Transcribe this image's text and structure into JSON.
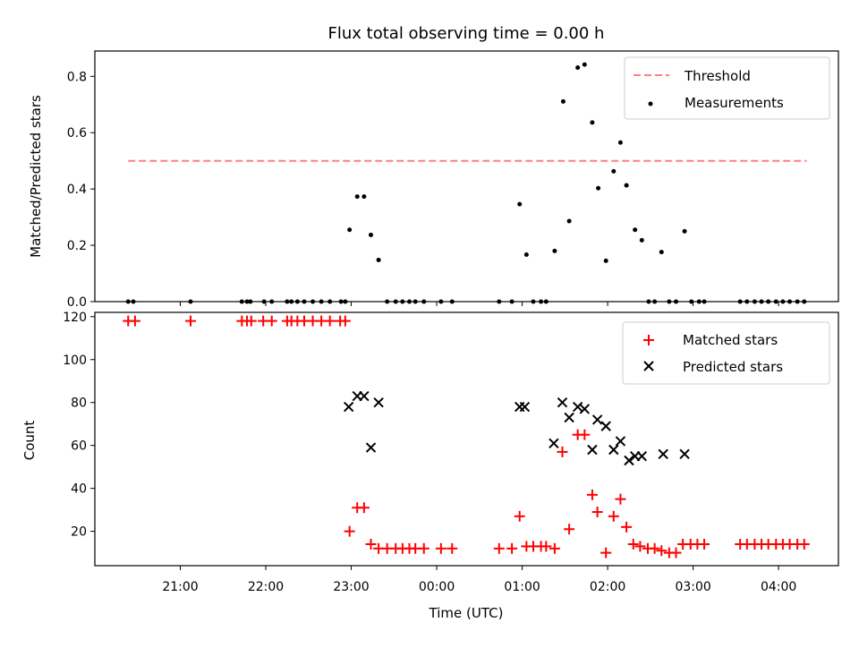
{
  "chart_data": {
    "title": "Flux total observing time = 0.00 h",
    "xlabel": "Time (UTC)",
    "x_unit": "hours since 20:00 UTC",
    "xlim": [
      20.0,
      28.7
    ],
    "xticks": [
      {
        "v": 21,
        "label": "21:00"
      },
      {
        "v": 22,
        "label": "22:00"
      },
      {
        "v": 23,
        "label": "23:00"
      },
      {
        "v": 24,
        "label": "00:00"
      },
      {
        "v": 25,
        "label": "01:00"
      },
      {
        "v": 26,
        "label": "02:00"
      },
      {
        "v": 27,
        "label": "03:00"
      },
      {
        "v": 28,
        "label": "04:00"
      }
    ],
    "top": {
      "type": "scatter",
      "ylabel": "Matched/Predicted stars",
      "ylim": [
        0,
        0.89
      ],
      "yticks": [
        {
          "v": 0.0,
          "label": "0.0"
        },
        {
          "v": 0.2,
          "label": "0.2"
        },
        {
          "v": 0.4,
          "label": "0.4"
        },
        {
          "v": 0.6,
          "label": "0.6"
        },
        {
          "v": 0.8,
          "label": "0.8"
        }
      ],
      "threshold": {
        "name": "Threshold",
        "value": 0.5,
        "x_start": 20.39,
        "x_end": 28.33,
        "color": "#ff7f7f"
      },
      "measurements": {
        "name": "Measurements",
        "color": "#000000",
        "points": [
          [
            20.39,
            0.0
          ],
          [
            20.45,
            0.0
          ],
          [
            21.12,
            0.0
          ],
          [
            21.72,
            0.0
          ],
          [
            21.78,
            0.0
          ],
          [
            21.82,
            0.0
          ],
          [
            21.98,
            0.0
          ],
          [
            22.07,
            0.0
          ],
          [
            22.25,
            0.0
          ],
          [
            22.3,
            0.0
          ],
          [
            22.37,
            0.0
          ],
          [
            22.45,
            0.0
          ],
          [
            22.55,
            0.0
          ],
          [
            22.65,
            0.0
          ],
          [
            22.75,
            0.0
          ],
          [
            22.88,
            0.0
          ],
          [
            22.93,
            0.0
          ],
          [
            22.98,
            0.255
          ],
          [
            23.07,
            0.373
          ],
          [
            23.15,
            0.373
          ],
          [
            23.23,
            0.237
          ],
          [
            23.32,
            0.148
          ],
          [
            23.42,
            0.0
          ],
          [
            23.52,
            0.0
          ],
          [
            23.6,
            0.0
          ],
          [
            23.68,
            0.0
          ],
          [
            23.75,
            0.0
          ],
          [
            23.85,
            0.0
          ],
          [
            24.05,
            0.0
          ],
          [
            24.18,
            0.0
          ],
          [
            24.73,
            0.0
          ],
          [
            24.88,
            0.0
          ],
          [
            24.97,
            0.346
          ],
          [
            25.05,
            0.167
          ],
          [
            25.13,
            0.0
          ],
          [
            25.22,
            0.0
          ],
          [
            25.28,
            0.0
          ],
          [
            25.38,
            0.18
          ],
          [
            25.48,
            0.711
          ],
          [
            25.55,
            0.286
          ],
          [
            25.65,
            0.831
          ],
          [
            25.73,
            0.842
          ],
          [
            25.82,
            0.636
          ],
          [
            25.89,
            0.403
          ],
          [
            25.98,
            0.145
          ],
          [
            26.07,
            0.463
          ],
          [
            26.15,
            0.565
          ],
          [
            26.22,
            0.413
          ],
          [
            26.32,
            0.255
          ],
          [
            26.4,
            0.218
          ],
          [
            26.48,
            0.0
          ],
          [
            26.55,
            0.0
          ],
          [
            26.63,
            0.176
          ],
          [
            26.72,
            0.0
          ],
          [
            26.8,
            0.0
          ],
          [
            26.9,
            0.25
          ],
          [
            26.98,
            0.0
          ],
          [
            27.07,
            0.0
          ],
          [
            27.13,
            0.0
          ],
          [
            27.55,
            0.0
          ],
          [
            27.63,
            0.0
          ],
          [
            27.72,
            0.0
          ],
          [
            27.8,
            0.0
          ],
          [
            27.88,
            0.0
          ],
          [
            27.97,
            0.0
          ],
          [
            28.05,
            0.0
          ],
          [
            28.13,
            0.0
          ],
          [
            28.22,
            0.0
          ],
          [
            28.3,
            0.0
          ]
        ]
      },
      "legend": {
        "position": "top-right",
        "entries": [
          "Threshold",
          "Measurements"
        ]
      }
    },
    "bottom": {
      "type": "scatter",
      "ylabel": "Count",
      "ylim": [
        4,
        122
      ],
      "yticks": [
        {
          "v": 20,
          "label": "20"
        },
        {
          "v": 40,
          "label": "40"
        },
        {
          "v": 60,
          "label": "60"
        },
        {
          "v": 80,
          "label": "80"
        },
        {
          "v": 100,
          "label": "100"
        },
        {
          "v": 120,
          "label": "120"
        }
      ],
      "series": [
        {
          "name": "Matched stars",
          "marker": "+",
          "color": "#ff0000",
          "points": [
            [
              20.39,
              118
            ],
            [
              20.47,
              118
            ],
            [
              21.12,
              118
            ],
            [
              21.72,
              118
            ],
            [
              21.78,
              118
            ],
            [
              21.83,
              118
            ],
            [
              21.97,
              118
            ],
            [
              22.07,
              118
            ],
            [
              22.25,
              118
            ],
            [
              22.3,
              118
            ],
            [
              22.37,
              118
            ],
            [
              22.45,
              118
            ],
            [
              22.55,
              118
            ],
            [
              22.65,
              118
            ],
            [
              22.75,
              118
            ],
            [
              22.87,
              118
            ],
            [
              22.93,
              118
            ],
            [
              22.98,
              20
            ],
            [
              23.07,
              31
            ],
            [
              23.15,
              31
            ],
            [
              23.23,
              14
            ],
            [
              23.32,
              12
            ],
            [
              23.42,
              12
            ],
            [
              23.52,
              12
            ],
            [
              23.6,
              12
            ],
            [
              23.68,
              12
            ],
            [
              23.75,
              12
            ],
            [
              23.85,
              12
            ],
            [
              24.05,
              12
            ],
            [
              24.18,
              12
            ],
            [
              24.73,
              12
            ],
            [
              24.88,
              12
            ],
            [
              24.97,
              27
            ],
            [
              25.05,
              13
            ],
            [
              25.13,
              13
            ],
            [
              25.22,
              13
            ],
            [
              25.28,
              13
            ],
            [
              25.38,
              12
            ],
            [
              25.47,
              57
            ],
            [
              25.55,
              21
            ],
            [
              25.65,
              65
            ],
            [
              25.73,
              65
            ],
            [
              25.82,
              37
            ],
            [
              25.88,
              29
            ],
            [
              25.98,
              10
            ],
            [
              26.07,
              27
            ],
            [
              26.15,
              35
            ],
            [
              26.22,
              22
            ],
            [
              26.3,
              14
            ],
            [
              26.38,
              13
            ],
            [
              26.47,
              12
            ],
            [
              26.55,
              12
            ],
            [
              26.63,
              11
            ],
            [
              26.72,
              10
            ],
            [
              26.8,
              10
            ],
            [
              26.88,
              14
            ],
            [
              26.97,
              14
            ],
            [
              27.05,
              14
            ],
            [
              27.13,
              14
            ],
            [
              27.55,
              14
            ],
            [
              27.63,
              14
            ],
            [
              27.72,
              14
            ],
            [
              27.8,
              14
            ],
            [
              27.88,
              14
            ],
            [
              27.97,
              14
            ],
            [
              28.05,
              14
            ],
            [
              28.13,
              14
            ],
            [
              28.22,
              14
            ],
            [
              28.3,
              14
            ]
          ]
        },
        {
          "name": "Predicted stars",
          "marker": "x",
          "color": "#000000",
          "points": [
            [
              22.97,
              78
            ],
            [
              23.07,
              83
            ],
            [
              23.15,
              83
            ],
            [
              23.23,
              59
            ],
            [
              23.32,
              80
            ],
            [
              24.97,
              78
            ],
            [
              25.03,
              78
            ],
            [
              25.37,
              61
            ],
            [
              25.47,
              80
            ],
            [
              25.55,
              73
            ],
            [
              25.65,
              78
            ],
            [
              25.73,
              77
            ],
            [
              25.82,
              58
            ],
            [
              25.88,
              72
            ],
            [
              25.98,
              69
            ],
            [
              26.07,
              58
            ],
            [
              26.15,
              62
            ],
            [
              26.25,
              53
            ],
            [
              26.32,
              55
            ],
            [
              26.4,
              55
            ],
            [
              26.65,
              56
            ],
            [
              26.9,
              56
            ]
          ]
        }
      ],
      "legend": {
        "position": "top-right",
        "entries": [
          "Matched stars",
          "Predicted stars"
        ]
      }
    }
  }
}
